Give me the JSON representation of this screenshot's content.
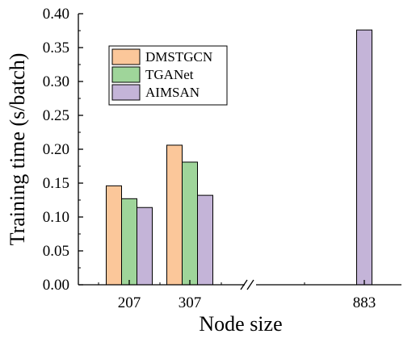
{
  "chart_data": {
    "type": "bar",
    "xlabel": "Node size",
    "ylabel": "Training time (s/batch)",
    "categories": [
      "207",
      "307",
      "883"
    ],
    "ylim": [
      0,
      0.4
    ],
    "yticks": [
      "0.00",
      "0.05",
      "0.10",
      "0.15",
      "0.20",
      "0.25",
      "0.30",
      "0.35",
      "0.40"
    ],
    "axis_break": true,
    "legend_position": "upper-left",
    "grid": false,
    "series": [
      {
        "name": "DMSTGCN",
        "color": "#fbc79a",
        "values": [
          0.146,
          0.206,
          null
        ]
      },
      {
        "name": "TGANet",
        "color": "#9fd59a",
        "values": [
          0.127,
          0.181,
          null
        ]
      },
      {
        "name": "AIMSAN",
        "color": "#c4b4d8",
        "values": [
          0.114,
          0.132,
          0.376
        ]
      }
    ]
  }
}
